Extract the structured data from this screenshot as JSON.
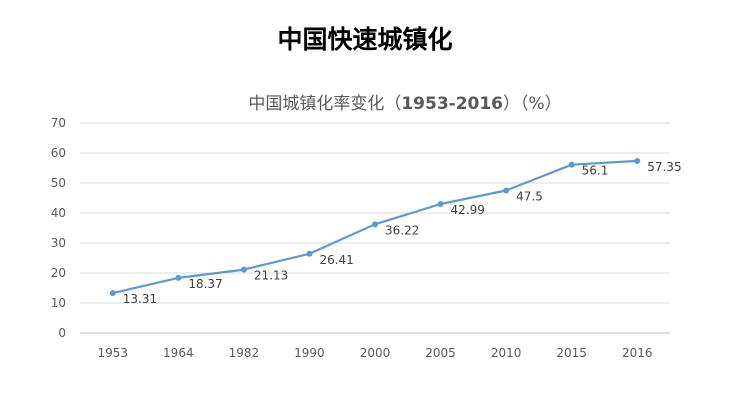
{
  "slide": {
    "title": "中国快速城镇化"
  },
  "chart_data": {
    "type": "line",
    "title_prefix": "中国城镇化率变化（",
    "title_years": "1953-2016",
    "title_suffix": "）（%）",
    "categories": [
      "1953",
      "1964",
      "1982",
      "1990",
      "2000",
      "2005",
      "2010",
      "2015",
      "2016"
    ],
    "series": [
      {
        "values": [
          13.31,
          18.37,
          21.13,
          26.41,
          36.22,
          42.99,
          47.5,
          56.1,
          57.35
        ]
      }
    ],
    "data_labels": [
      "13.31",
      "18.37",
      "21.13",
      "26.41",
      "36.22",
      "42.99",
      "47.5",
      "56.1",
      "57.35"
    ],
    "yticks": [
      "0",
      "10",
      "20",
      "30",
      "40",
      "50",
      "60",
      "70"
    ],
    "ylim": [
      0,
      70
    ],
    "grid": true,
    "legend": "none",
    "line_color": "#5b9bd5",
    "grid_color": "#d9d9d9"
  }
}
